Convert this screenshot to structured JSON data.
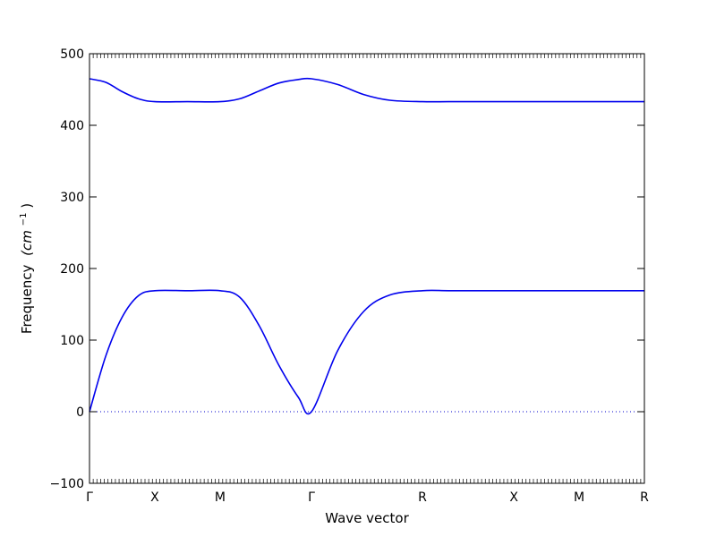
{
  "chart_data": {
    "type": "line",
    "xlabel": "Wave vector",
    "ylabel": "Frequency",
    "ylabel_unit": "(cm",
    "ylabel_unit_exp": "−1",
    "ylabel_unit_close": ")",
    "ylim": [
      -100,
      500
    ],
    "yticks": [
      -100,
      0,
      100,
      200,
      300,
      400,
      500
    ],
    "ytick_labels": [
      "−100",
      "0",
      "100",
      "200",
      "300",
      "400",
      "500"
    ],
    "x_range": [
      0,
      8.5
    ],
    "path_points": [
      {
        "label": "Γ",
        "x": 0
      },
      {
        "label": "X",
        "x": 1
      },
      {
        "label": "M",
        "x": 2
      },
      {
        "label": "Γ",
        "x": 3.4
      },
      {
        "label": "R",
        "x": 5.1
      },
      {
        "label": "X",
        "x": 6.5
      },
      {
        "label": "M",
        "x": 7.5
      },
      {
        "label": "R",
        "x": 8.5
      }
    ],
    "zero_line": true,
    "line_color": "#0000ee",
    "series": [
      {
        "values_x": [
          0,
          0.25,
          0.5,
          0.75,
          1.0,
          1.5,
          2.0,
          2.3,
          2.6,
          2.9,
          3.2,
          3.4,
          3.8,
          4.2,
          4.6,
          5.1,
          5.5,
          6.0,
          6.5,
          7.0,
          7.5,
          8.0,
          8.5
        ],
        "values_y": [
          0,
          78,
          132,
          162,
          169,
          169,
          169,
          160,
          120,
          65,
          20,
          0,
          85,
          140,
          163,
          169,
          169,
          169,
          169,
          169,
          169,
          169,
          169
        ]
      },
      {
        "values_x": [
          0,
          0.25,
          0.5,
          0.75,
          1.0,
          1.5,
          2.0,
          2.3,
          2.6,
          2.9,
          3.2,
          3.4,
          3.8,
          4.2,
          4.6,
          5.1,
          5.5,
          6.0,
          6.5,
          7.0,
          7.5,
          8.0,
          8.5
        ],
        "values_y": [
          465,
          460,
          447,
          437,
          433,
          433,
          433,
          437,
          448,
          459,
          464,
          465,
          457,
          443,
          435,
          433,
          433,
          433,
          433,
          433,
          433,
          433,
          433
        ]
      }
    ]
  }
}
